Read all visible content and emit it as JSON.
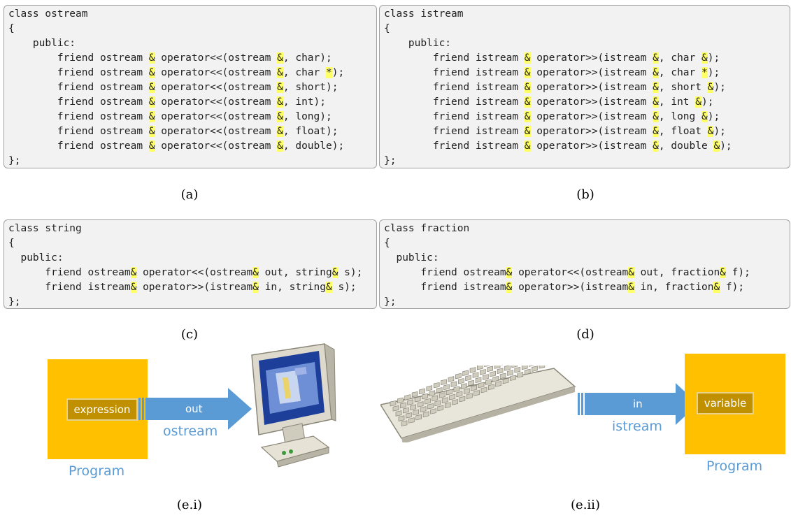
{
  "panel_a": {
    "lines": [
      {
        "indent": 0,
        "parts": [
          {
            "t": "class ostream"
          }
        ]
      },
      {
        "indent": 0,
        "parts": [
          {
            "t": "{"
          }
        ]
      },
      {
        "indent": 4,
        "parts": [
          {
            "t": "public:"
          }
        ]
      },
      {
        "indent": 8,
        "parts": [
          {
            "t": "friend ostream "
          },
          {
            "t": "&",
            "hl": true
          },
          {
            "t": " operator<<(ostream "
          },
          {
            "t": "&",
            "hl": true
          },
          {
            "t": ", char);"
          }
        ]
      },
      {
        "indent": 8,
        "parts": [
          {
            "t": "friend ostream "
          },
          {
            "t": "&",
            "hl": true
          },
          {
            "t": " operator<<(ostream "
          },
          {
            "t": "&",
            "hl": true
          },
          {
            "t": ", char "
          },
          {
            "t": "*",
            "hl": true
          },
          {
            "t": ");"
          }
        ]
      },
      {
        "indent": 8,
        "parts": [
          {
            "t": "friend ostream "
          },
          {
            "t": "&",
            "hl": true
          },
          {
            "t": " operator<<(ostream "
          },
          {
            "t": "&",
            "hl": true
          },
          {
            "t": ", short);"
          }
        ]
      },
      {
        "indent": 8,
        "parts": [
          {
            "t": "friend ostream "
          },
          {
            "t": "&",
            "hl": true
          },
          {
            "t": " operator<<(ostream "
          },
          {
            "t": "&",
            "hl": true
          },
          {
            "t": ", int);"
          }
        ]
      },
      {
        "indent": 8,
        "parts": [
          {
            "t": "friend ostream "
          },
          {
            "t": "&",
            "hl": true
          },
          {
            "t": " operator<<(ostream "
          },
          {
            "t": "&",
            "hl": true
          },
          {
            "t": ", long);"
          }
        ]
      },
      {
        "indent": 8,
        "parts": [
          {
            "t": "friend ostream "
          },
          {
            "t": "&",
            "hl": true
          },
          {
            "t": " operator<<(ostream "
          },
          {
            "t": "&",
            "hl": true
          },
          {
            "t": ", float);"
          }
        ]
      },
      {
        "indent": 8,
        "parts": [
          {
            "t": "friend ostream "
          },
          {
            "t": "&",
            "hl": true
          },
          {
            "t": " operator<<(ostream "
          },
          {
            "t": "&",
            "hl": true
          },
          {
            "t": ", double);"
          }
        ]
      },
      {
        "indent": 0,
        "parts": [
          {
            "t": "};"
          }
        ]
      }
    ],
    "caption": "(a)"
  },
  "panel_b": {
    "lines": [
      {
        "indent": 0,
        "parts": [
          {
            "t": "class istream"
          }
        ]
      },
      {
        "indent": 0,
        "parts": [
          {
            "t": "{"
          }
        ]
      },
      {
        "indent": 4,
        "parts": [
          {
            "t": "public:"
          }
        ]
      },
      {
        "indent": 8,
        "parts": [
          {
            "t": "friend istream "
          },
          {
            "t": "&",
            "hl": true
          },
          {
            "t": " operator>>(istream "
          },
          {
            "t": "&",
            "hl": true
          },
          {
            "t": ", char "
          },
          {
            "t": "&",
            "hl": true
          },
          {
            "t": ");"
          }
        ]
      },
      {
        "indent": 8,
        "parts": [
          {
            "t": "friend istream "
          },
          {
            "t": "&",
            "hl": true
          },
          {
            "t": " operator>>(istream "
          },
          {
            "t": "&",
            "hl": true
          },
          {
            "t": ", char "
          },
          {
            "t": "*",
            "hl": true
          },
          {
            "t": ");"
          }
        ]
      },
      {
        "indent": 8,
        "parts": [
          {
            "t": "friend istream "
          },
          {
            "t": "&",
            "hl": true
          },
          {
            "t": " operator>>(istream "
          },
          {
            "t": "&",
            "hl": true
          },
          {
            "t": ", short "
          },
          {
            "t": "&",
            "hl": true
          },
          {
            "t": ");"
          }
        ]
      },
      {
        "indent": 8,
        "parts": [
          {
            "t": "friend istream "
          },
          {
            "t": "&",
            "hl": true
          },
          {
            "t": " operator>>(istream "
          },
          {
            "t": "&",
            "hl": true
          },
          {
            "t": ", int "
          },
          {
            "t": "&",
            "hl": true
          },
          {
            "t": ");"
          }
        ]
      },
      {
        "indent": 8,
        "parts": [
          {
            "t": "friend istream "
          },
          {
            "t": "&",
            "hl": true
          },
          {
            "t": " operator>>(istream "
          },
          {
            "t": "&",
            "hl": true
          },
          {
            "t": ", long "
          },
          {
            "t": "&",
            "hl": true
          },
          {
            "t": ");"
          }
        ]
      },
      {
        "indent": 8,
        "parts": [
          {
            "t": "friend istream "
          },
          {
            "t": "&",
            "hl": true
          },
          {
            "t": " operator>>(istream "
          },
          {
            "t": "&",
            "hl": true
          },
          {
            "t": ", float "
          },
          {
            "t": "&",
            "hl": true
          },
          {
            "t": ");"
          }
        ]
      },
      {
        "indent": 8,
        "parts": [
          {
            "t": "friend istream "
          },
          {
            "t": "&",
            "hl": true
          },
          {
            "t": " operator>>(istream "
          },
          {
            "t": "&",
            "hl": true
          },
          {
            "t": ", double "
          },
          {
            "t": "&",
            "hl": true
          },
          {
            "t": ");"
          }
        ]
      },
      {
        "indent": 0,
        "parts": [
          {
            "t": "};"
          }
        ]
      }
    ],
    "caption": "(b)"
  },
  "panel_c": {
    "lines": [
      {
        "indent": 0,
        "parts": [
          {
            "t": "class string"
          }
        ]
      },
      {
        "indent": 0,
        "parts": [
          {
            "t": "{"
          }
        ]
      },
      {
        "indent": 2,
        "parts": [
          {
            "t": "public:"
          }
        ]
      },
      {
        "indent": 6,
        "parts": [
          {
            "t": "friend ostream"
          },
          {
            "t": "&",
            "hl": true
          },
          {
            "t": " operator<<(ostream"
          },
          {
            "t": "&",
            "hl": true
          },
          {
            "t": " out, string"
          },
          {
            "t": "&",
            "hl": true
          },
          {
            "t": " s);"
          }
        ]
      },
      {
        "indent": 6,
        "parts": [
          {
            "t": "friend istream"
          },
          {
            "t": "&",
            "hl": true
          },
          {
            "t": " operator>>(istream"
          },
          {
            "t": "&",
            "hl": true
          },
          {
            "t": " in, string"
          },
          {
            "t": "&",
            "hl": true
          },
          {
            "t": " s);"
          }
        ]
      },
      {
        "indent": 0,
        "parts": [
          {
            "t": "};"
          }
        ]
      }
    ],
    "caption": "(c)"
  },
  "panel_d": {
    "lines": [
      {
        "indent": 0,
        "parts": [
          {
            "t": "class fraction"
          }
        ]
      },
      {
        "indent": 0,
        "parts": [
          {
            "t": "{"
          }
        ]
      },
      {
        "indent": 2,
        "parts": [
          {
            "t": "public:"
          }
        ]
      },
      {
        "indent": 6,
        "parts": [
          {
            "t": "friend ostream"
          },
          {
            "t": "&",
            "hl": true
          },
          {
            "t": " operator<<(ostream"
          },
          {
            "t": "&",
            "hl": true
          },
          {
            "t": " out, fraction"
          },
          {
            "t": "&",
            "hl": true
          },
          {
            "t": " f);"
          }
        ]
      },
      {
        "indent": 6,
        "parts": [
          {
            "t": "friend istream"
          },
          {
            "t": "&",
            "hl": true
          },
          {
            "t": " operator>>(istream"
          },
          {
            "t": "&",
            "hl": true
          },
          {
            "t": " in, fraction"
          },
          {
            "t": "&",
            "hl": true
          },
          {
            "t": " f);"
          }
        ]
      },
      {
        "indent": 0,
        "parts": [
          {
            "t": "};"
          }
        ]
      }
    ],
    "caption": "(d)"
  },
  "diagram_out": {
    "box_label": "expression",
    "arrow_label": "out",
    "stream_label": "ostream",
    "program_label": "Program",
    "device": "monitor-icon",
    "caption": "(e.i)"
  },
  "diagram_in": {
    "box_label": "variable",
    "arrow_label": "in",
    "stream_label": "istream",
    "program_label": "Program",
    "device": "keyboard-icon",
    "caption": "(e.ii)"
  },
  "colors": {
    "highlight": "#ffff66",
    "program_box": "#ffc000",
    "inner_box": "#c09000",
    "arrow": "#5b9bd5",
    "label_blue": "#5b9bd5",
    "code_bg": "#f2f2f2"
  }
}
